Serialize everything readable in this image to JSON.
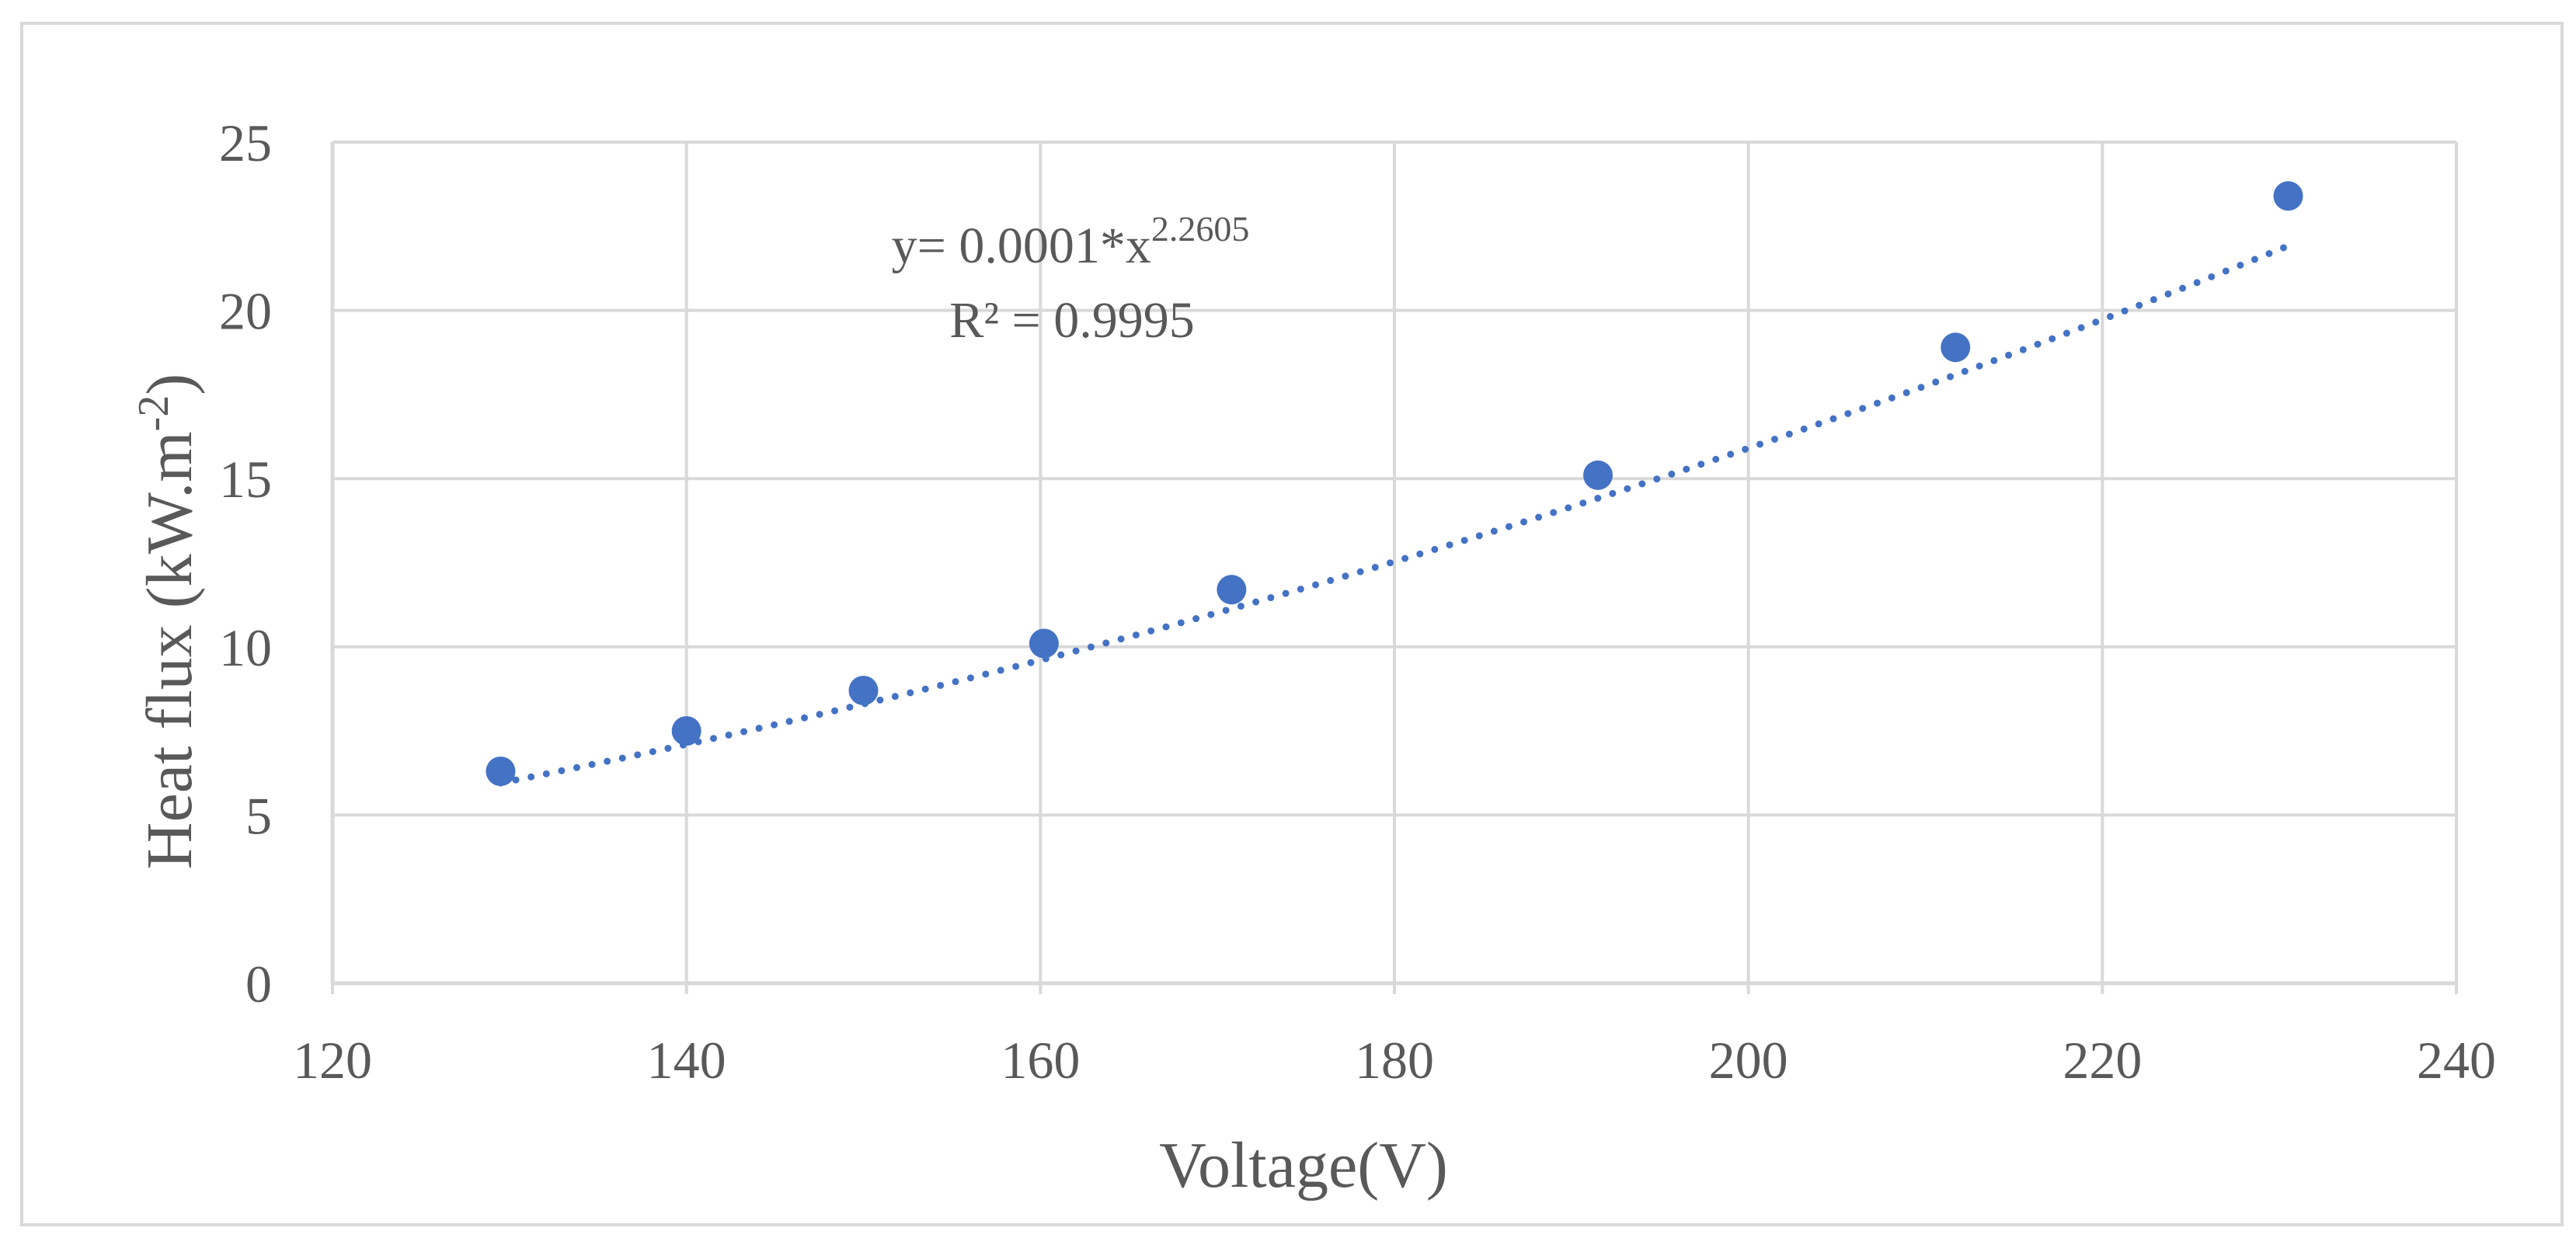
{
  "chart_data": {
    "type": "scatter",
    "title": "",
    "xlabel": "Voltage(V)",
    "ylabel": {
      "main": "Heat flux  (kW.m",
      "exponent": "-2",
      "close": ")"
    },
    "xlim": [
      120,
      240
    ],
    "ylim": [
      0,
      25
    ],
    "x_ticks": [
      120,
      140,
      160,
      180,
      200,
      220,
      240
    ],
    "y_ticks": [
      0,
      5,
      10,
      15,
      20,
      25
    ],
    "grid": true,
    "legend": "none",
    "series": [
      {
        "name": "Heat flux",
        "color": "#4472C4",
        "x": [
          129.5,
          140.0,
          150.0,
          160.2,
          170.8,
          191.5,
          211.7,
          230.5
        ],
        "y": [
          6.3,
          7.5,
          8.7,
          10.1,
          11.7,
          15.1,
          18.9,
          23.4
        ]
      }
    ],
    "trendline": {
      "type": "power",
      "style": "dotted",
      "color": "#4472C4",
      "coefficient": 0.0001,
      "exponent": 2.2605,
      "x_range": [
        129.5,
        230.5
      ],
      "equation_text": {
        "base": "y= 0.0001*x",
        "exponent": "2.2605"
      },
      "r2_text": "R² = 0.9995"
    }
  },
  "style": {
    "border_color": "#D9D9D9",
    "grid_color": "#D9D9D9",
    "text_color": "#595959",
    "marker_color": "#4472C4"
  }
}
